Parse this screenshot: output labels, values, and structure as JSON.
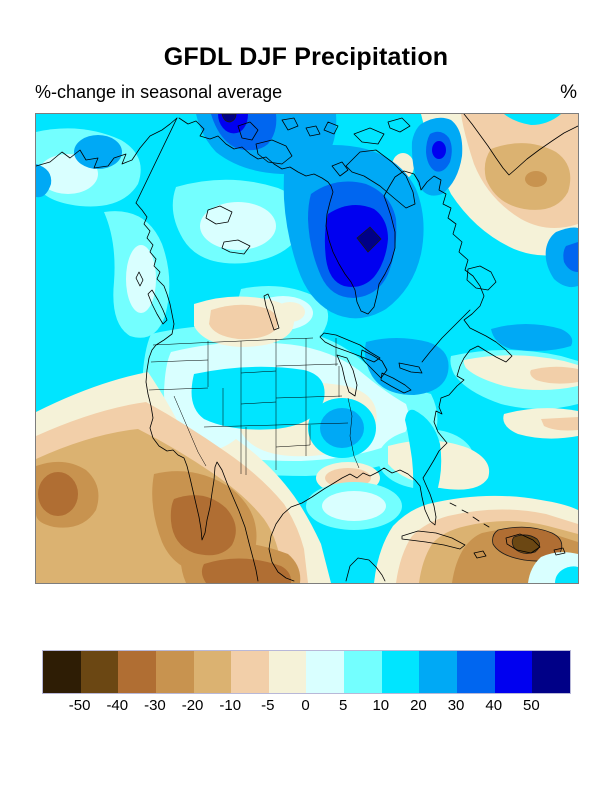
{
  "figure": {
    "title": "GFDL DJF Precipitation",
    "subtitle": "%-change in seasonal average",
    "units_label": "%"
  },
  "colorbar": {
    "tick_labels": [
      "-50",
      "-40",
      "-30",
      "-20",
      "-10",
      "-5",
      "0",
      "5",
      "10",
      "20",
      "30",
      "40",
      "50"
    ],
    "colors": [
      "#2E1D05",
      "#6B4713",
      "#B06E33",
      "#C8934F",
      "#DBB271",
      "#F2CFA9",
      "#F5F2D8",
      "#D9FFFF",
      "#73FFFF",
      "#00E5FF",
      "#00A9F5",
      "#0066F0",
      "#0000F0",
      "#000087"
    ]
  },
  "chart_data": {
    "type": "filled_contour_map",
    "title": "GFDL DJF Precipitation",
    "subtitle": "%-change in seasonal average",
    "units": "%",
    "region": "North America",
    "contour_levels": [
      -50,
      -40,
      -30,
      -20,
      -10,
      -5,
      0,
      5,
      10,
      20,
      30,
      40,
      50
    ],
    "palette": [
      "#2E1D05",
      "#6B4713",
      "#B06E33",
      "#C8934F",
      "#DBB271",
      "#F2CFA9",
      "#F5F2D8",
      "#D9FFFF",
      "#73FFFF",
      "#00E5FF",
      "#00A9F5",
      "#0066F0",
      "#0000F0",
      "#000087"
    ],
    "legend_position": "bottom",
    "features": [
      {
        "region": "Hudson Bay / northern Quebec",
        "value": "greater than 50"
      },
      {
        "region": "Canadian Arctic Archipelago (top center)",
        "value": "40 to greater than 50"
      },
      {
        "region": "Baffin Bay / Davis Strait",
        "value": "30 to 40"
      },
      {
        "region": "Labrador Sea / North Atlantic (upper right)",
        "value": "-10 to -30"
      },
      {
        "region": "Most of Canada and Alaska",
        "value": "10 to 20"
      },
      {
        "region": "Great Lakes / Northeast US and Missouri",
        "value": "20 to 30"
      },
      {
        "region": "Central Great Plains",
        "value": "-5 to 5"
      },
      {
        "region": "Northern Rockies / Montana",
        "value": "-5 to -10"
      },
      {
        "region": "Subtropical East Pacific off Baja California",
        "value": "-30 to -40"
      },
      {
        "region": "Caribbean near Hispaniola",
        "value": "-40 to -50"
      },
      {
        "region": "Subtropical West Atlantic",
        "value": "-5 to -10"
      }
    ]
  }
}
